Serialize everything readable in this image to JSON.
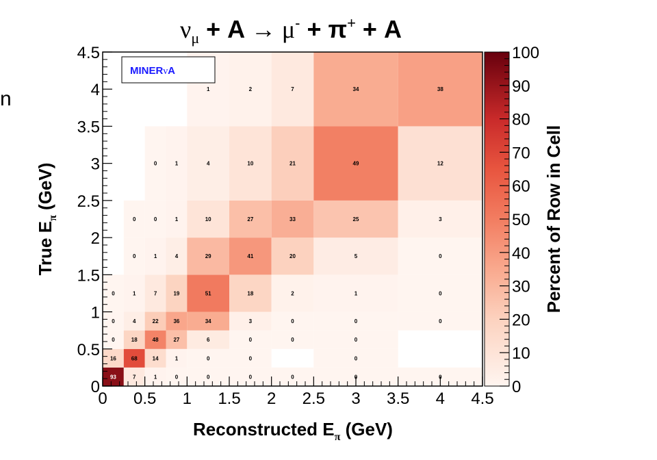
{
  "chart_data": {
    "type": "heatmap",
    "title_parts": {
      "nu": "ν",
      "nu_sub": "μ",
      "plus_a": " + A ",
      "arrow": "→",
      "mu": " μ",
      "mu_sup": "-",
      "plus_pi": " + π",
      "pi_sup": "+",
      "tail": " + A"
    },
    "label_box": {
      "prefix": "MINER",
      "nu": "ν",
      "suffix": "A"
    },
    "xlabel": {
      "main": "Reconstructed E",
      "sub": "π",
      "unit": " (GeV)"
    },
    "ylabel": {
      "main": "True E",
      "sub": "π",
      "unit": " (GeV)"
    },
    "zlabel": "Percent of Row in Cell",
    "xlim": [
      0,
      4.5
    ],
    "ylim": [
      0,
      4.5
    ],
    "zlim": [
      0,
      100
    ],
    "x_ticks": [
      "0",
      "0.5",
      "1",
      "1.5",
      "2",
      "2.5",
      "3",
      "3.5",
      "4",
      "4.5"
    ],
    "y_ticks": [
      "0",
      "0.5",
      "1",
      "1.5",
      "2",
      "2.5",
      "3",
      "3.5",
      "4",
      "4.5"
    ],
    "z_ticks": [
      "0",
      "10",
      "20",
      "30",
      "40",
      "50",
      "60",
      "70",
      "80",
      "90",
      "100"
    ],
    "x_edges": [
      0,
      0.25,
      0.5,
      0.75,
      1.0,
      1.5,
      2.0,
      2.5,
      3.5,
      4.5
    ],
    "y_edges": [
      0,
      0.25,
      0.5,
      0.75,
      1.0,
      1.5,
      2.0,
      2.5,
      3.5,
      4.5
    ],
    "cells": [
      [
        93,
        7,
        1,
        0,
        0,
        0,
        0,
        0,
        0
      ],
      [
        16,
        68,
        14,
        1,
        0,
        0,
        null,
        0,
        null
      ],
      [
        0,
        18,
        48,
        27,
        6,
        0,
        0,
        0,
        null
      ],
      [
        0,
        4,
        22,
        36,
        34,
        3,
        0,
        0,
        0
      ],
      [
        0,
        1,
        7,
        19,
        51,
        18,
        2,
        1,
        0
      ],
      [
        null,
        0,
        1,
        4,
        29,
        41,
        20,
        5,
        0
      ],
      [
        null,
        0,
        0,
        1,
        10,
        27,
        33,
        25,
        3
      ],
      [
        null,
        null,
        0,
        1,
        4,
        10,
        21,
        49,
        12
      ],
      [
        null,
        null,
        null,
        null,
        1,
        2,
        7,
        34,
        38
      ]
    ],
    "page_fragment": "n"
  }
}
